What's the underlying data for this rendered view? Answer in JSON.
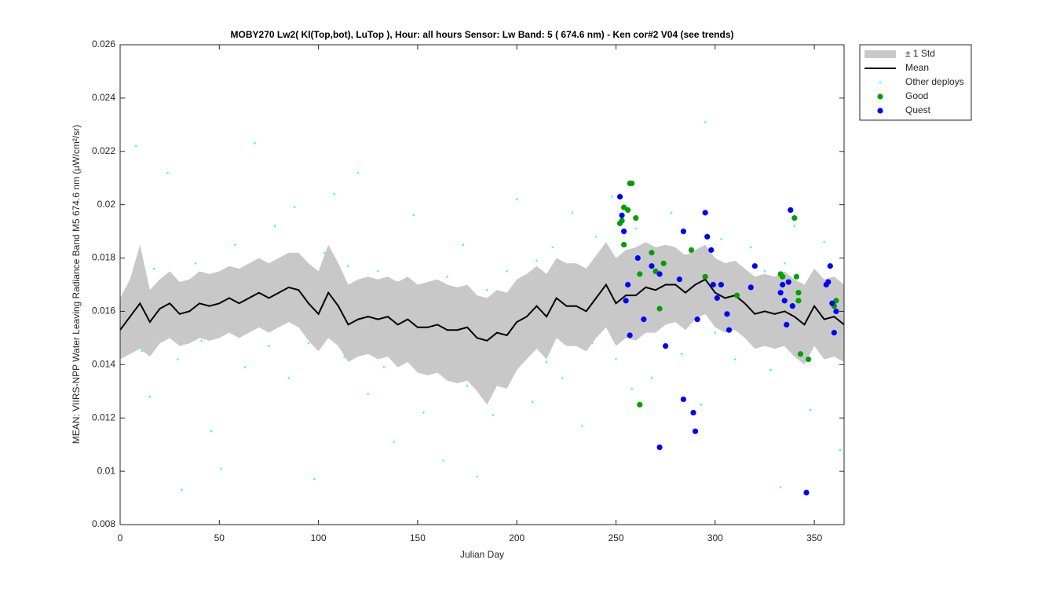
{
  "chart_data": {
    "type": "scatter",
    "title": "MOBY270   Lw2( Kl(Top,bot), LuTop ),   Hour: all hours  Sensor: Lw Band: 5 ( 674.6 nm)  - Ken cor#2 V04 (see trends)",
    "x_label": "Julian Day",
    "y_label": "MEAN: VIIRS-NPP Water Leaving Radiance Band M5 674.6 nm (µW/cm²/sr)",
    "xlim": [
      0,
      365
    ],
    "ylim": [
      0.008,
      0.026
    ],
    "xticks": [
      0,
      50,
      100,
      150,
      200,
      250,
      300,
      350
    ],
    "yticks": [
      0.008,
      0.01,
      0.012,
      0.014,
      0.016,
      0.018,
      0.02,
      0.022,
      0.024,
      0.026
    ],
    "legend": "outside-upper-right",
    "series": [
      {
        "name": "± 1 Std",
        "type": "area",
        "color": "#c8c8c8",
        "x": [
          0,
          5,
          10,
          15,
          20,
          25,
          30,
          35,
          40,
          45,
          50,
          55,
          60,
          65,
          70,
          75,
          80,
          85,
          90,
          95,
          100,
          105,
          110,
          115,
          120,
          125,
          130,
          135,
          140,
          145,
          150,
          155,
          160,
          165,
          170,
          175,
          180,
          185,
          190,
          195,
          200,
          205,
          210,
          215,
          220,
          225,
          230,
          235,
          240,
          245,
          250,
          255,
          260,
          265,
          270,
          275,
          280,
          285,
          290,
          295,
          300,
          305,
          310,
          315,
          320,
          325,
          330,
          335,
          340,
          345,
          350,
          355,
          360,
          365
        ],
        "upper": [
          0.0165,
          0.0172,
          0.0185,
          0.0168,
          0.0172,
          0.0175,
          0.0171,
          0.0172,
          0.0175,
          0.0174,
          0.0175,
          0.0177,
          0.0176,
          0.0178,
          0.018,
          0.0178,
          0.018,
          0.0182,
          0.0182,
          0.0178,
          0.0175,
          0.0185,
          0.0178,
          0.017,
          0.0172,
          0.0173,
          0.0172,
          0.0173,
          0.0171,
          0.0173,
          0.017,
          0.0171,
          0.0172,
          0.017,
          0.0169,
          0.017,
          0.0166,
          0.0165,
          0.0168,
          0.0167,
          0.0172,
          0.0174,
          0.0177,
          0.0174,
          0.018,
          0.0178,
          0.0178,
          0.0176,
          0.0181,
          0.0186,
          0.018,
          0.0183,
          0.0184,
          0.0186,
          0.0184,
          0.0185,
          0.0184,
          0.0181,
          0.0183,
          0.0185,
          0.018,
          0.0178,
          0.0179,
          0.0176,
          0.0173,
          0.0174,
          0.0173,
          0.0175,
          0.0172,
          0.017,
          0.0176,
          0.0172,
          0.0173,
          0.017
        ],
        "lower": [
          0.0142,
          0.0144,
          0.0146,
          0.0143,
          0.0148,
          0.015,
          0.0147,
          0.0148,
          0.015,
          0.0149,
          0.015,
          0.0152,
          0.015,
          0.0152,
          0.0154,
          0.0152,
          0.0154,
          0.0156,
          0.0154,
          0.0149,
          0.0145,
          0.015,
          0.0147,
          0.0141,
          0.0143,
          0.0144,
          0.0142,
          0.0143,
          0.0139,
          0.0141,
          0.0137,
          0.0136,
          0.0137,
          0.0134,
          0.0133,
          0.0134,
          0.013,
          0.0125,
          0.0132,
          0.0131,
          0.0138,
          0.0142,
          0.0146,
          0.0142,
          0.015,
          0.0147,
          0.0147,
          0.0145,
          0.015,
          0.0154,
          0.0147,
          0.015,
          0.0149,
          0.0152,
          0.0152,
          0.0155,
          0.0156,
          0.0153,
          0.0157,
          0.0159,
          0.0154,
          0.0152,
          0.0153,
          0.015,
          0.0146,
          0.0147,
          0.0146,
          0.0147,
          0.0143,
          0.014,
          0.0147,
          0.0142,
          0.0143,
          0.0141
        ]
      },
      {
        "name": "Mean",
        "type": "line",
        "color": "#000000",
        "x": [
          0,
          5,
          10,
          15,
          20,
          25,
          30,
          35,
          40,
          45,
          50,
          55,
          60,
          65,
          70,
          75,
          80,
          85,
          90,
          95,
          100,
          105,
          110,
          115,
          120,
          125,
          130,
          135,
          140,
          145,
          150,
          155,
          160,
          165,
          170,
          175,
          180,
          185,
          190,
          195,
          200,
          205,
          210,
          215,
          220,
          225,
          230,
          235,
          240,
          245,
          250,
          255,
          260,
          265,
          270,
          275,
          280,
          285,
          290,
          295,
          300,
          305,
          310,
          315,
          320,
          325,
          330,
          335,
          340,
          345,
          350,
          355,
          360,
          365
        ],
        "values": [
          0.0153,
          0.0158,
          0.0163,
          0.0156,
          0.0161,
          0.0163,
          0.0159,
          0.016,
          0.0163,
          0.0162,
          0.0163,
          0.0165,
          0.0163,
          0.0165,
          0.0167,
          0.0165,
          0.0167,
          0.0169,
          0.0168,
          0.0163,
          0.0159,
          0.0167,
          0.0162,
          0.0155,
          0.0157,
          0.0158,
          0.0157,
          0.0158,
          0.0155,
          0.0157,
          0.0154,
          0.0154,
          0.0155,
          0.0153,
          0.0153,
          0.0154,
          0.015,
          0.0149,
          0.0152,
          0.0151,
          0.0156,
          0.0158,
          0.0162,
          0.0158,
          0.0165,
          0.0162,
          0.0162,
          0.016,
          0.0165,
          0.017,
          0.0163,
          0.0166,
          0.0166,
          0.0169,
          0.0168,
          0.017,
          0.017,
          0.0167,
          0.017,
          0.0172,
          0.0167,
          0.0165,
          0.0166,
          0.0163,
          0.0159,
          0.016,
          0.0159,
          0.016,
          0.0158,
          0.0155,
          0.0162,
          0.0157,
          0.0158,
          0.0155
        ]
      },
      {
        "name": "Other deploys",
        "type": "dots",
        "color": "#00ffff",
        "x": [
          2,
          4,
          6,
          8,
          9,
          11,
          13,
          15,
          17,
          19,
          22,
          24,
          27,
          29,
          31,
          34,
          36,
          38,
          41,
          43,
          46,
          48,
          51,
          53,
          56,
          58,
          61,
          63,
          66,
          68,
          70,
          73,
          75,
          78,
          80,
          83,
          85,
          88,
          90,
          93,
          95,
          98,
          100,
          103,
          105,
          108,
          110,
          113,
          115,
          118,
          120,
          123,
          125,
          128,
          130,
          133,
          135,
          138,
          140,
          143,
          145,
          148,
          150,
          153,
          155,
          158,
          160,
          163,
          165,
          168,
          170,
          173,
          175,
          178,
          180,
          183,
          185,
          188,
          190,
          193,
          195,
          198,
          200,
          203,
          205,
          208,
          210,
          213,
          215,
          218,
          220,
          223,
          225,
          228,
          230,
          233,
          235,
          238,
          240,
          243,
          245,
          248,
          250,
          253,
          255,
          258,
          260,
          263,
          265,
          268,
          270,
          273,
          275,
          278,
          280,
          283,
          285,
          288,
          290,
          293,
          295,
          298,
          300,
          303,
          305,
          308,
          310,
          313,
          315,
          318,
          320,
          323,
          325,
          328,
          330,
          333,
          335,
          338,
          340,
          343,
          345,
          348,
          350,
          353,
          355,
          358,
          360,
          363
        ],
        "values": [
          0.0158,
          0.0149,
          0.0171,
          0.0222,
          0.0162,
          0.0145,
          0.0167,
          0.0128,
          0.0176,
          0.0159,
          0.0153,
          0.0212,
          0.0164,
          0.0142,
          0.0093,
          0.0169,
          0.0157,
          0.0178,
          0.0149,
          0.0163,
          0.0115,
          0.0172,
          0.0101,
          0.0158,
          0.0166,
          0.0185,
          0.0152,
          0.0139,
          0.0174,
          0.0223,
          0.0161,
          0.0168,
          0.0147,
          0.0192,
          0.0157,
          0.0171,
          0.0135,
          0.0199,
          0.0162,
          0.0175,
          0.0148,
          0.0097,
          0.0166,
          0.0182,
          0.0155,
          0.0204,
          0.0161,
          0.0143,
          0.0177,
          0.0158,
          0.0212,
          0.0167,
          0.0129,
          0.0153,
          0.0175,
          0.0139,
          0.0162,
          0.0111,
          0.0171,
          0.0145,
          0.0158,
          0.0196,
          0.0149,
          0.0122,
          0.0166,
          0.0137,
          0.0159,
          0.0104,
          0.0173,
          0.0141,
          0.0155,
          0.0185,
          0.0132,
          0.0162,
          0.0098,
          0.0147,
          0.0168,
          0.0121,
          0.0158,
          0.0139,
          0.0175,
          0.0153,
          0.0202,
          0.0145,
          0.0166,
          0.0126,
          0.0179,
          0.0158,
          0.0141,
          0.0184,
          0.0163,
          0.0135,
          0.0171,
          0.0197,
          0.0155,
          0.0117,
          0.0174,
          0.0148,
          0.0188,
          0.0166,
          0.0159,
          0.0203,
          0.0142,
          0.0178,
          0.0168,
          0.0131,
          0.0191,
          0.0156,
          0.0176,
          0.0135,
          0.0183,
          0.0161,
          0.0169,
          0.0197,
          0.0158,
          0.0144,
          0.0181,
          0.0172,
          0.0164,
          0.0125,
          0.0231,
          0.0169,
          0.0152,
          0.0187,
          0.0161,
          0.0173,
          0.0142,
          0.0168,
          0.0156,
          0.0184,
          0.0149,
          0.0166,
          0.0175,
          0.0138,
          0.0161,
          0.0094,
          0.0178,
          0.0152,
          0.0192,
          0.0164,
          0.0147,
          0.0123,
          0.0171,
          0.0158,
          0.0186,
          0.0143,
          0.0166,
          0.0108
        ]
      },
      {
        "name": "Good",
        "type": "dots",
        "color": "#00a000",
        "x": [
          252,
          253,
          254,
          254,
          256,
          257,
          258,
          260,
          262,
          262,
          268,
          270,
          272,
          274,
          288,
          295,
          311,
          333,
          334,
          340,
          341,
          342,
          342,
          343,
          347,
          360,
          361
        ],
        "values": [
          0.0193,
          0.0194,
          0.0199,
          0.0185,
          0.0198,
          0.0208,
          0.0208,
          0.0195,
          0.0174,
          0.0125,
          0.0182,
          0.0175,
          0.0161,
          0.0178,
          0.0183,
          0.0173,
          0.0166,
          0.0174,
          0.0173,
          0.0195,
          0.0173,
          0.0164,
          0.0167,
          0.0144,
          0.0142,
          0.0162,
          0.0164
        ]
      },
      {
        "name": "Quest",
        "type": "dots",
        "color": "#0000ff",
        "x": [
          252,
          253,
          254,
          255,
          256,
          257,
          261,
          264,
          268,
          272,
          272,
          275,
          282,
          284,
          284,
          289,
          290,
          291,
          295,
          296,
          298,
          299,
          301,
          303,
          306,
          307,
          318,
          320,
          333,
          334,
          335,
          336,
          337,
          338,
          339,
          346,
          356,
          357,
          358,
          359,
          360,
          361
        ],
        "values": [
          0.0203,
          0.0196,
          0.019,
          0.0164,
          0.017,
          0.0151,
          0.018,
          0.0157,
          0.0177,
          0.0174,
          0.0109,
          0.0147,
          0.0172,
          0.019,
          0.0127,
          0.0122,
          0.0115,
          0.0157,
          0.0197,
          0.0188,
          0.0183,
          0.017,
          0.0165,
          0.017,
          0.0159,
          0.0153,
          0.0169,
          0.0177,
          0.0167,
          0.017,
          0.0164,
          0.0155,
          0.0171,
          0.0198,
          0.0162,
          0.0092,
          0.017,
          0.0171,
          0.0177,
          0.0163,
          0.0152,
          0.016
        ]
      }
    ]
  }
}
